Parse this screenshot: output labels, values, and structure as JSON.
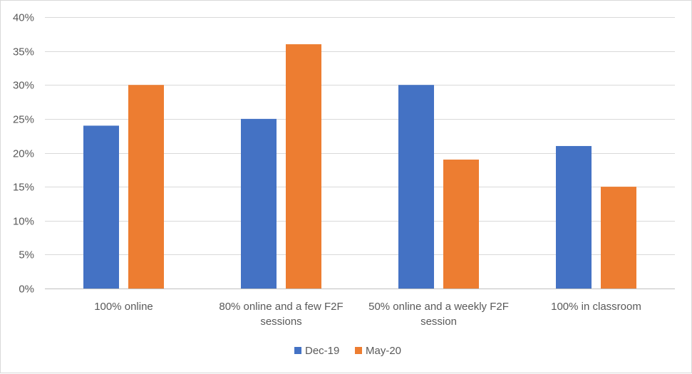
{
  "chart_data": {
    "type": "bar",
    "title": "",
    "xlabel": "",
    "ylabel": "",
    "categories": [
      [
        "100% online"
      ],
      [
        "80% online and a few F2F",
        "sessions"
      ],
      [
        "50% online and a weekly F2F",
        "session"
      ],
      [
        "100% in classroom"
      ]
    ],
    "series": [
      {
        "name": "Dec-19",
        "color": "#4472C4",
        "values": [
          0.24,
          0.25,
          0.3,
          0.21
        ]
      },
      {
        "name": "May-20",
        "color": "#ED7D31",
        "values": [
          0.3,
          0.36,
          0.19,
          0.15
        ]
      }
    ],
    "ylim": [
      0,
      0.4
    ],
    "yticks": [
      0,
      0.05,
      0.1,
      0.15,
      0.2,
      0.25,
      0.3,
      0.35,
      0.4
    ],
    "ytick_labels": [
      "0%",
      "5%",
      "10%",
      "15%",
      "20%",
      "25%",
      "30%",
      "35%",
      "40%"
    ],
    "grid": true,
    "legend_position": "bottom"
  }
}
